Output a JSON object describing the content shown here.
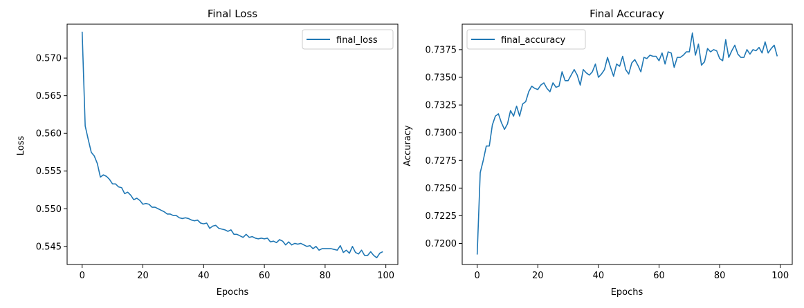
{
  "figure": {
    "background": "#ffffff"
  },
  "chart_data": [
    {
      "type": "line",
      "title": "Final Loss",
      "xlabel": "Epochs",
      "ylabel": "Loss",
      "xlim": [
        -4.95,
        103.95
      ],
      "ylim": [
        0.5426,
        0.5745
      ],
      "x_ticks": [
        0,
        20,
        40,
        60,
        80,
        100
      ],
      "x_tick_labels": [
        "0",
        "20",
        "40",
        "60",
        "80",
        "100"
      ],
      "y_ticks": [
        0.545,
        0.55,
        0.555,
        0.56,
        0.565,
        0.57
      ],
      "y_tick_labels": [
        "0.545",
        "0.550",
        "0.555",
        "0.560",
        "0.565",
        "0.570"
      ],
      "grid": false,
      "legend": {
        "position": "upper right",
        "entries": [
          "final_loss"
        ]
      },
      "series": [
        {
          "name": "final_loss",
          "color": "#1f77b4",
          "x": [
            0,
            1,
            2,
            3,
            4,
            5,
            6,
            7,
            8,
            9,
            10,
            11,
            12,
            13,
            14,
            15,
            16,
            17,
            18,
            19,
            20,
            21,
            22,
            23,
            24,
            25,
            26,
            27,
            28,
            29,
            30,
            31,
            32,
            33,
            34,
            35,
            36,
            37,
            38,
            39,
            40,
            41,
            42,
            43,
            44,
            45,
            46,
            47,
            48,
            49,
            50,
            51,
            52,
            53,
            54,
            55,
            56,
            57,
            58,
            59,
            60,
            61,
            62,
            63,
            64,
            65,
            66,
            67,
            68,
            69,
            70,
            71,
            72,
            73,
            74,
            75,
            76,
            77,
            78,
            79,
            80,
            81,
            82,
            83,
            84,
            85,
            86,
            87,
            88,
            89,
            90,
            91,
            92,
            93,
            94,
            95,
            96,
            97,
            98,
            99
          ],
          "values": [
            0.5735,
            0.561,
            0.5592,
            0.5575,
            0.557,
            0.556,
            0.5542,
            0.5545,
            0.5543,
            0.5539,
            0.5533,
            0.5533,
            0.5529,
            0.5528,
            0.552,
            0.5522,
            0.5518,
            0.5512,
            0.5514,
            0.5511,
            0.5506,
            0.5507,
            0.5506,
            0.5502,
            0.5502,
            0.55,
            0.5498,
            0.5496,
            0.5493,
            0.5493,
            0.5491,
            0.5491,
            0.5488,
            0.5487,
            0.5488,
            0.5487,
            0.5485,
            0.5484,
            0.5485,
            0.5481,
            0.548,
            0.5481,
            0.5474,
            0.5477,
            0.5478,
            0.5474,
            0.5473,
            0.5472,
            0.547,
            0.5472,
            0.5466,
            0.5466,
            0.5464,
            0.5462,
            0.5466,
            0.5462,
            0.5463,
            0.5461,
            0.546,
            0.5461,
            0.546,
            0.5461,
            0.5456,
            0.5457,
            0.5455,
            0.5459,
            0.5457,
            0.5452,
            0.5456,
            0.5452,
            0.5454,
            0.5453,
            0.5454,
            0.5452,
            0.545,
            0.5451,
            0.5447,
            0.545,
            0.5445,
            0.5447,
            0.5447,
            0.5447,
            0.5447,
            0.5446,
            0.5445,
            0.5451,
            0.5442,
            0.5445,
            0.5441,
            0.545,
            0.5442,
            0.544,
            0.5445,
            0.5438,
            0.5438,
            0.5443,
            0.5438,
            0.5435,
            0.5441,
            0.5443
          ]
        }
      ]
    },
    {
      "type": "line",
      "title": "Final Accuracy",
      "xlabel": "Epochs",
      "ylabel": "Accuracy",
      "xlim": [
        -4.95,
        103.95
      ],
      "ylim": [
        0.7181,
        0.7398
      ],
      "x_ticks": [
        0,
        20,
        40,
        60,
        80,
        100
      ],
      "x_tick_labels": [
        "0",
        "20",
        "40",
        "60",
        "80",
        "100"
      ],
      "y_ticks": [
        0.72,
        0.7225,
        0.725,
        0.7275,
        0.73,
        0.7325,
        0.735,
        0.7375
      ],
      "y_tick_labels": [
        "0.7200",
        "0.7225",
        "0.7250",
        "0.7275",
        "0.7300",
        "0.7325",
        "0.7350",
        "0.7375"
      ],
      "grid": false,
      "legend": {
        "position": "upper left",
        "entries": [
          "final_accuracy"
        ]
      },
      "series": [
        {
          "name": "final_accuracy",
          "color": "#1f77b4",
          "x": [
            0,
            1,
            2,
            3,
            4,
            5,
            6,
            7,
            8,
            9,
            10,
            11,
            12,
            13,
            14,
            15,
            16,
            17,
            18,
            19,
            20,
            21,
            22,
            23,
            24,
            25,
            26,
            27,
            28,
            29,
            30,
            31,
            32,
            33,
            34,
            35,
            36,
            37,
            38,
            39,
            40,
            41,
            42,
            43,
            44,
            45,
            46,
            47,
            48,
            49,
            50,
            51,
            52,
            53,
            54,
            55,
            56,
            57,
            58,
            59,
            60,
            61,
            62,
            63,
            64,
            65,
            66,
            67,
            68,
            69,
            70,
            71,
            72,
            73,
            74,
            75,
            76,
            77,
            78,
            79,
            80,
            81,
            82,
            83,
            84,
            85,
            86,
            87,
            88,
            89,
            90,
            91,
            92,
            93,
            94,
            95,
            96,
            97,
            98,
            99
          ],
          "values": [
            0.719,
            0.7264,
            0.7275,
            0.7288,
            0.7288,
            0.7307,
            0.7315,
            0.7317,
            0.7309,
            0.7303,
            0.7308,
            0.732,
            0.7315,
            0.7324,
            0.7315,
            0.7326,
            0.7328,
            0.7337,
            0.7342,
            0.734,
            0.7339,
            0.7343,
            0.7345,
            0.734,
            0.7337,
            0.7345,
            0.7341,
            0.7342,
            0.7355,
            0.7347,
            0.7347,
            0.7352,
            0.7357,
            0.7352,
            0.7343,
            0.7357,
            0.7354,
            0.7352,
            0.7355,
            0.7362,
            0.735,
            0.7353,
            0.7357,
            0.7368,
            0.7359,
            0.7351,
            0.7362,
            0.736,
            0.7369,
            0.7357,
            0.7353,
            0.7363,
            0.7366,
            0.7361,
            0.7355,
            0.7368,
            0.7367,
            0.737,
            0.7369,
            0.7369,
            0.7365,
            0.7372,
            0.7362,
            0.7373,
            0.7372,
            0.7359,
            0.7368,
            0.7368,
            0.737,
            0.7373,
            0.7373,
            0.739,
            0.737,
            0.738,
            0.7361,
            0.7364,
            0.7376,
            0.7373,
            0.7375,
            0.7374,
            0.7367,
            0.7365,
            0.7384,
            0.7368,
            0.7374,
            0.7379,
            0.7371,
            0.7368,
            0.7368,
            0.7375,
            0.7371,
            0.7375,
            0.7374,
            0.7377,
            0.7372,
            0.7382,
            0.7372,
            0.7376,
            0.7379,
            0.7369
          ]
        }
      ]
    }
  ]
}
